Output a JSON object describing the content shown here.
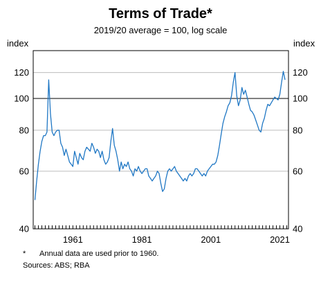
{
  "chart_data": {
    "type": "line",
    "title": "Terms of Trade*",
    "subtitle": "2019/20 average = 100, log scale",
    "ylabel_left": "index",
    "ylabel_right": "index",
    "y_scale": "log",
    "ylim": [
      40,
      140
    ],
    "xlim": [
      1949.5,
      2023.5
    ],
    "y_ticks": [
      40,
      60,
      80,
      100,
      120
    ],
    "x_tick_labels": [
      "1961",
      "1981",
      "2001",
      "2021"
    ],
    "x_tick_values": [
      1961,
      1981,
      2001,
      2021
    ],
    "reference_line": 100,
    "grid": true,
    "line_color": "#1f77c4",
    "series": [
      {
        "x": [
          1950,
          1950.5,
          1951,
          1951.5,
          1952,
          1952.5,
          1953,
          1953.5,
          1954,
          1954.5,
          1955,
          1955.5,
          1956,
          1956.5,
          1957,
          1957.5,
          1958,
          1958.5,
          1959,
          1959.5,
          1960,
          1960.5,
          1961,
          1961.5,
          1962,
          1962.5,
          1963,
          1963.5,
          1964,
          1964.5,
          1965,
          1965.5,
          1966,
          1966.5,
          1967,
          1967.5,
          1968,
          1968.5,
          1969,
          1969.5,
          1970,
          1970.5,
          1971,
          1971.5,
          1972,
          1972.5,
          1973,
          1973.5,
          1974,
          1974.5,
          1975,
          1975.5,
          1976,
          1976.5,
          1977,
          1977.5,
          1978,
          1978.5,
          1979,
          1979.5,
          1980,
          1980.5,
          1981,
          1981.5,
          1982,
          1982.5,
          1983,
          1983.5,
          1984,
          1984.5,
          1985,
          1985.5,
          1986,
          1986.5,
          1987,
          1987.5,
          1988,
          1988.5,
          1989,
          1989.5,
          1990,
          1990.5,
          1991,
          1991.5,
          1992,
          1992.5,
          1993,
          1993.5,
          1994,
          1994.5,
          1995,
          1995.5,
          1996,
          1996.5,
          1997,
          1997.5,
          1998,
          1998.5,
          1999,
          1999.5,
          2000,
          2000.5,
          2001,
          2001.5,
          2002,
          2002.5,
          2003,
          2003.5,
          2004,
          2004.5,
          2005,
          2005.5,
          2006,
          2006.5,
          2007,
          2007.5,
          2008,
          2008.5,
          2009,
          2009.5,
          2010,
          2010.5,
          2011,
          2011.5,
          2012,
          2012.5,
          2013,
          2013.5,
          2014,
          2014.5,
          2015,
          2015.5,
          2016,
          2016.5,
          2017,
          2017.5,
          2018,
          2018.5,
          2019,
          2019.5,
          2020,
          2020.5,
          2021,
          2021.5,
          2022,
          2022.5
        ],
        "values": [
          49,
          56,
          63,
          69,
          74,
          77,
          77,
          79,
          114,
          90,
          79,
          77,
          79,
          80,
          80,
          73,
          71,
          67,
          70,
          67,
          64,
          63,
          62,
          69,
          66,
          63,
          68,
          66,
          65,
          69,
          71,
          70,
          69,
          73,
          71,
          68,
          70,
          69,
          66,
          69,
          65,
          63,
          64,
          66,
          74,
          81,
          72,
          69,
          65,
          60,
          64,
          61,
          63,
          62,
          64,
          61,
          60,
          58,
          61,
          60,
          62,
          60,
          59,
          60,
          61,
          61,
          58,
          57,
          56,
          57,
          58,
          60,
          59,
          55,
          52,
          53,
          57,
          60,
          61,
          60,
          61,
          62,
          60,
          59,
          58,
          57,
          56,
          57,
          56,
          58,
          59,
          58,
          59,
          61,
          61,
          60,
          59,
          58,
          59,
          58,
          60,
          61,
          62,
          63,
          63,
          64,
          67,
          72,
          78,
          84,
          88,
          91,
          95,
          97,
          102,
          112,
          120,
          102,
          95,
          99,
          108,
          103,
          106,
          101,
          96,
          92,
          91,
          89,
          86,
          83,
          80,
          79,
          84,
          87,
          92,
          96,
          95,
          97,
          99,
          101,
          100,
          99,
          103,
          112,
          121,
          114
        ]
      }
    ]
  },
  "footnote": {
    "mark": "*",
    "text": "Annual data are used prior to 1960."
  },
  "sources": "Sources: ABS; RBA"
}
